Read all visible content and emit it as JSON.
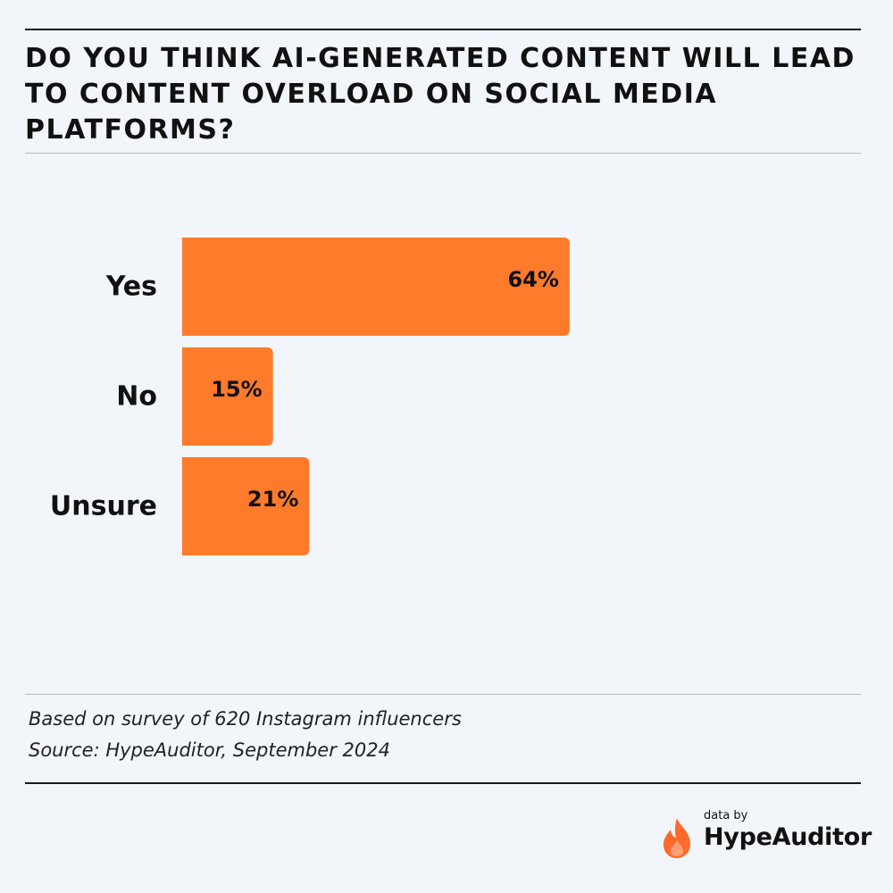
{
  "title": "Do you think AI-generated content will lead to content overload on social media platforms?",
  "chart_data": {
    "type": "bar",
    "orientation": "horizontal",
    "categories": [
      "Yes",
      "No",
      "Unsure"
    ],
    "values": [
      64,
      15,
      21
    ],
    "value_labels": [
      "64%",
      "15%",
      "21%"
    ],
    "unit": "%",
    "xlim": [
      0,
      100
    ],
    "grid": false,
    "legend": "none",
    "bar_color": "#ff7b2c"
  },
  "notes": {
    "survey": "Based on survey of 620 Instagram influencers",
    "source": "Source: HypeAuditor, September 2024"
  },
  "brand": {
    "prefix": "data by",
    "name": "HypeAuditor",
    "icon": "flame-icon",
    "color": "#ff6b2c"
  }
}
